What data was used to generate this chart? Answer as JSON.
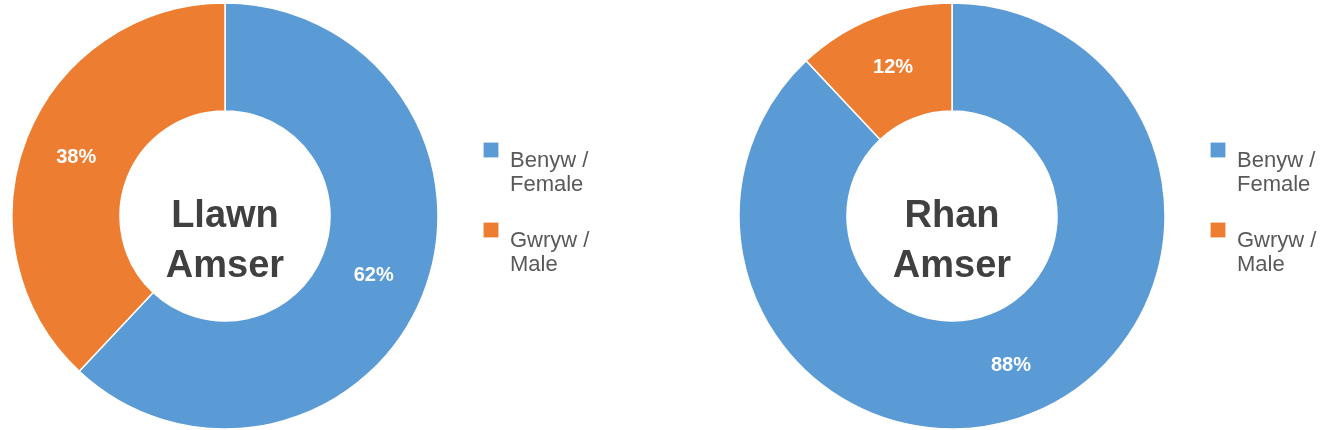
{
  "chart_data": [
    {
      "type": "donut",
      "title": "Llawn Amser",
      "categories": [
        "Benyw / Female",
        "Gwryw / Male"
      ],
      "values": [
        62,
        38
      ],
      "colors": [
        "#5b9bd5",
        "#ed7d31"
      ],
      "value_labels": [
        "62%",
        "38%"
      ],
      "legend": "right"
    },
    {
      "type": "donut",
      "title": "Rhan Amser",
      "categories": [
        "Benyw / Female",
        "Gwryw / Male"
      ],
      "values": [
        88,
        12
      ],
      "colors": [
        "#5b9bd5",
        "#ed7d31"
      ],
      "value_labels": [
        "88%",
        "12%"
      ],
      "legend": "right"
    }
  ]
}
